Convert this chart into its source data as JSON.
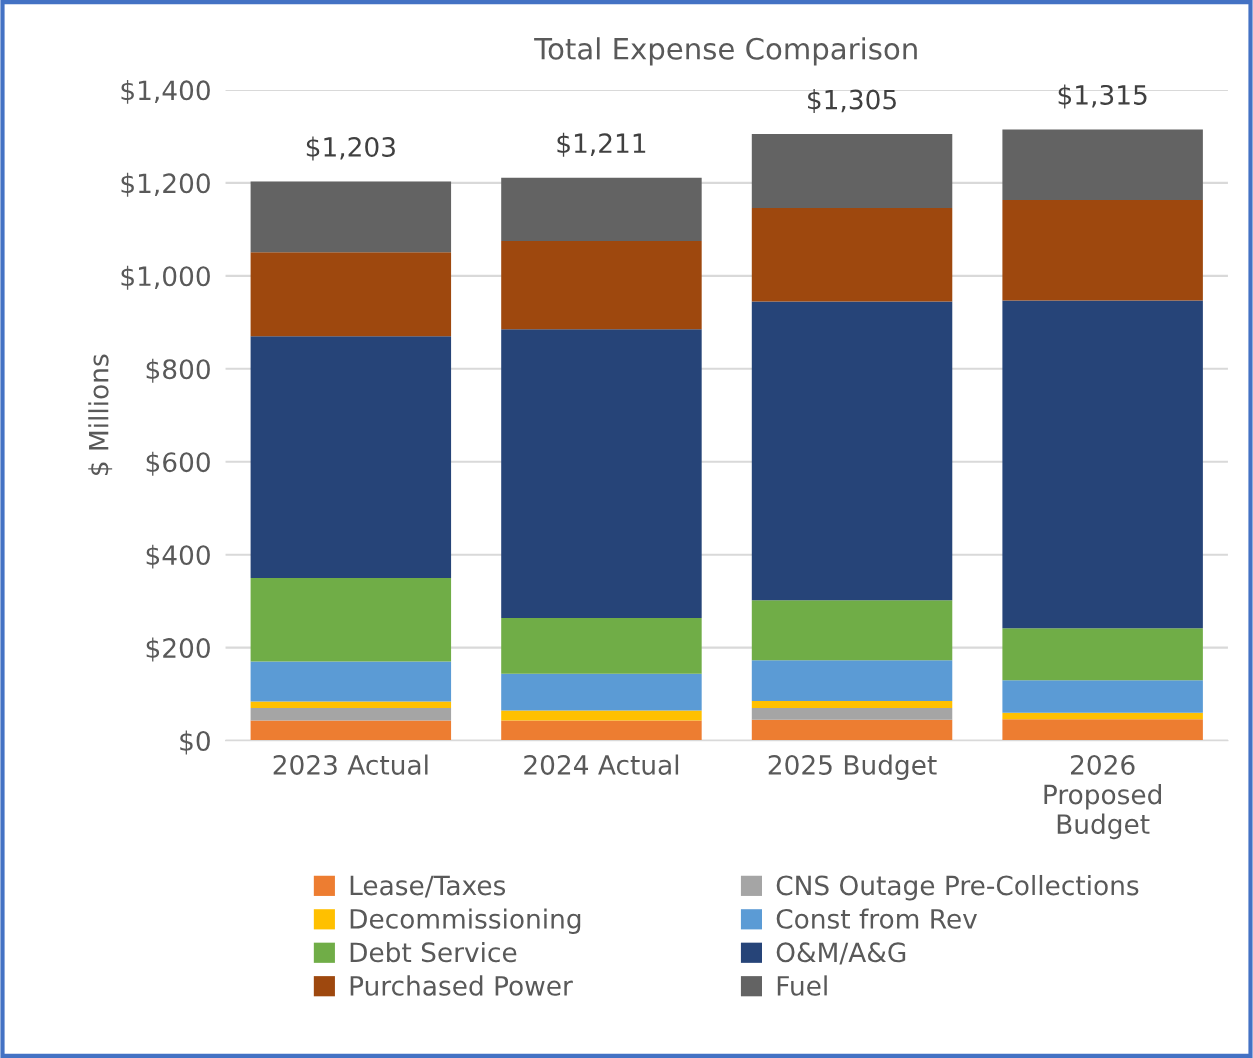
{
  "chart_data": {
    "type": "bar",
    "stacked": true,
    "title": "Total Expense Comparison",
    "ylabel": "$ Millions",
    "categories": [
      "2023 Actual",
      "2024 Actual",
      "2025 Budget",
      "2026\nProposed\nBudget"
    ],
    "series": [
      {
        "name": "Lease/Taxes",
        "color": "#ed7d31",
        "values": [
          43,
          43,
          45,
          46
        ]
      },
      {
        "name": "CNS Outage Pre-Collections",
        "color": "#a5a5a5",
        "values": [
          27,
          0,
          25,
          0
        ]
      },
      {
        "name": "Decommissioning",
        "color": "#ffc000",
        "values": [
          14,
          22,
          15,
          14
        ]
      },
      {
        "name": "Const from Rev",
        "color": "#5b9bd5",
        "values": [
          86,
          79,
          88,
          70
        ]
      },
      {
        "name": "Debt Service",
        "color": "#70ad47",
        "values": [
          180,
          120,
          129,
          112
        ]
      },
      {
        "name": "O&M/A&G",
        "color": "#264478",
        "values": [
          520,
          621,
          643,
          705
        ]
      },
      {
        "name": "Purchased Power",
        "color": "#9e480e",
        "values": [
          181,
          190,
          201,
          216
        ]
      },
      {
        "name": "Fuel",
        "color": "#636363",
        "values": [
          152,
          136,
          159,
          152
        ]
      }
    ],
    "totals": [
      "$1,203",
      "$1,211",
      "$1,305",
      "$1,315"
    ],
    "ylim": [
      0,
      1400
    ],
    "yticks": [
      {
        "value": 0,
        "label": "$0"
      },
      {
        "value": 200,
        "label": "$200"
      },
      {
        "value": 400,
        "label": "$400"
      },
      {
        "value": 600,
        "label": "$600"
      },
      {
        "value": 800,
        "label": "$800"
      },
      {
        "value": 1000,
        "label": "$1,000"
      },
      {
        "value": 1200,
        "label": "$1,200"
      },
      {
        "value": 1400,
        "label": "$1,400"
      }
    ],
    "grid": "y",
    "legend": "bottom"
  }
}
